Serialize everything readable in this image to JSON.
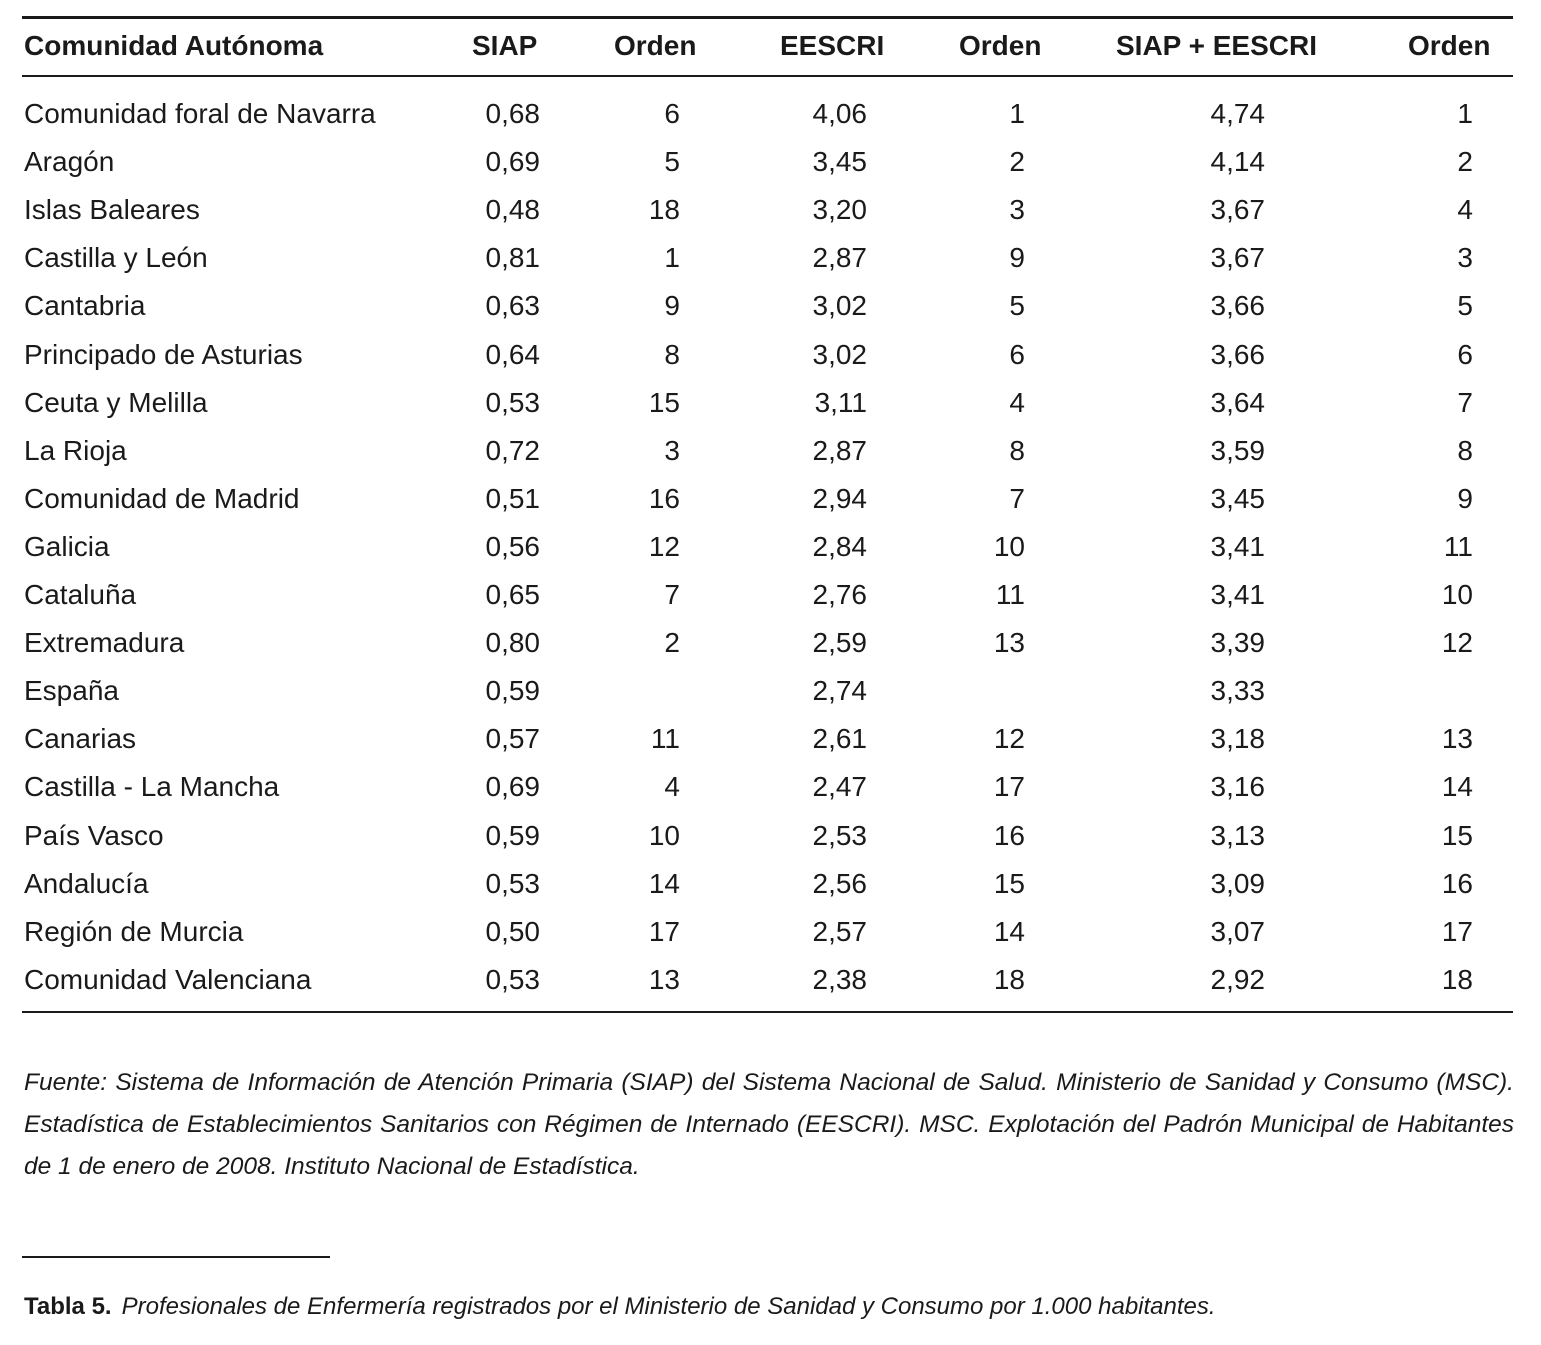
{
  "table": {
    "headers": [
      "Comunidad Autónoma",
      "SIAP",
      "Orden",
      "EESCRI",
      "Orden",
      "SIAP + EESCRI",
      "Orden"
    ],
    "rows": [
      [
        "Comunidad foral de Navarra",
        "0,68",
        "6",
        "4,06",
        "1",
        "4,74",
        "1"
      ],
      [
        "Aragón",
        "0,69",
        "5",
        "3,45",
        "2",
        "4,14",
        "2"
      ],
      [
        "Islas Baleares",
        "0,48",
        "18",
        "3,20",
        "3",
        "3,67",
        "4"
      ],
      [
        "Castilla y León",
        "0,81",
        "1",
        "2,87",
        "9",
        "3,67",
        "3"
      ],
      [
        "Cantabria",
        "0,63",
        "9",
        "3,02",
        "5",
        "3,66",
        "5"
      ],
      [
        "Principado de  Asturias",
        "0,64",
        "8",
        "3,02",
        "6",
        "3,66",
        "6"
      ],
      [
        "Ceuta y Melilla",
        "0,53",
        "15",
        "3,11",
        "4",
        "3,64",
        "7"
      ],
      [
        "La Rioja",
        "0,72",
        "3",
        "2,87",
        "8",
        "3,59",
        "8"
      ],
      [
        "Comunidad de Madrid",
        "0,51",
        "16",
        "2,94",
        "7",
        "3,45",
        "9"
      ],
      [
        "Galicia",
        "0,56",
        "12",
        "2,84",
        "10",
        "3,41",
        "11"
      ],
      [
        "Cataluña",
        "0,65",
        "7",
        "2,76",
        "11",
        "3,41",
        "10"
      ],
      [
        "Extremadura",
        "0,80",
        "2",
        "2,59",
        "13",
        "3,39",
        "12"
      ],
      [
        "España",
        "0,59",
        "",
        "2,74",
        "",
        "3,33",
        ""
      ],
      [
        "Canarias",
        "0,57",
        "11",
        "2,61",
        "12",
        "3,18",
        "13"
      ],
      [
        "Castilla - La Mancha",
        "0,69",
        "4",
        "2,47",
        "17",
        "3,16",
        "14"
      ],
      [
        "País Vasco",
        "0,59",
        "10",
        "2,53",
        "16",
        "3,13",
        "15"
      ],
      [
        "Andalucía",
        "0,53",
        "14",
        "2,56",
        "15",
        "3,09",
        "16"
      ],
      [
        "Región de Murcia",
        "0,50",
        "17",
        "2,57",
        "14",
        "3,07",
        "17"
      ],
      [
        "Comunidad Valenciana",
        "0,53",
        "13",
        "2,38",
        "18",
        "2,92",
        "18"
      ]
    ]
  },
  "source_note": "Fuente: Sistema de Información de Atención Primaria (SIAP) del Sistema Nacional de Salud. Ministerio de Sanidad y Consumo (MSC). Estadística de Establecimientos Sanitarios con Régimen de Internado (EESCRI). MSC. Explotación del Padrón Municipal de Habitantes de 1 de enero de 2008. Instituto Nacional de Estadística.",
  "caption": {
    "label": "Tabla 5.",
    "text": "Profesionales de Enfermería registrados por el Ministerio de Sanidad y Consumo por 1.000 habitantes."
  }
}
